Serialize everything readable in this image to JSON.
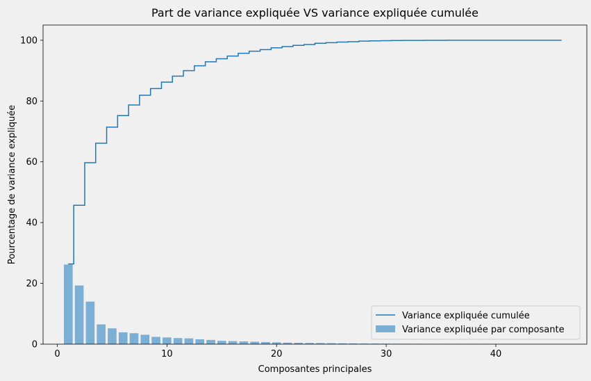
{
  "chart_data": {
    "type": "bar",
    "title": "Part de variance expliquée VS variance expliquée cumulée",
    "xlabel": "Composantes principales",
    "ylabel": "Pourcentage de variance expliquée",
    "xlim": [
      -1.3,
      48.3
    ],
    "ylim": [
      0,
      105
    ],
    "xticks": [
      0,
      10,
      20,
      30,
      40
    ],
    "yticks": [
      0,
      20,
      40,
      60,
      80,
      100
    ],
    "grid": false,
    "legend_position": "lower-right",
    "x": [
      1,
      2,
      3,
      4,
      5,
      6,
      7,
      8,
      9,
      10,
      11,
      12,
      13,
      14,
      15,
      16,
      17,
      18,
      19,
      20,
      21,
      22,
      23,
      24,
      25,
      26,
      27,
      28,
      29,
      30,
      31,
      32,
      33,
      34,
      35,
      36,
      37,
      38,
      39,
      40,
      41,
      42,
      43,
      44,
      45,
      46
    ],
    "series": [
      {
        "name": "Variance expliquée par composante",
        "type": "bar",
        "color": "#7bafd4",
        "values": [
          26.2,
          19.3,
          14.0,
          6.5,
          5.2,
          3.9,
          3.6,
          3.1,
          2.4,
          2.2,
          2.0,
          1.9,
          1.6,
          1.4,
          1.1,
          1.0,
          0.9,
          0.8,
          0.7,
          0.6,
          0.5,
          0.45,
          0.4,
          0.35,
          0.3,
          0.25,
          0.22,
          0.2,
          0.18,
          0.15,
          0.12,
          0.1,
          0.08,
          0.06,
          0.05,
          0.04,
          0.03,
          0.02,
          0.02,
          0.01,
          0.01,
          0.01,
          0.01,
          0.005,
          0.005,
          0.005
        ]
      },
      {
        "name": "Variance expliquée cumulée",
        "type": "step",
        "color": "#1f77b4",
        "values": [
          26.4,
          45.7,
          59.7,
          66.1,
          71.4,
          75.2,
          78.7,
          81.9,
          84.1,
          86.2,
          88.2,
          90.0,
          91.6,
          92.9,
          93.9,
          94.8,
          95.7,
          96.4,
          96.9,
          97.5,
          97.9,
          98.3,
          98.6,
          99.0,
          99.2,
          99.4,
          99.5,
          99.7,
          99.8,
          99.85,
          99.9,
          99.93,
          99.95,
          99.97,
          99.98,
          99.99,
          99.99,
          100,
          100,
          100,
          100,
          100,
          100,
          100,
          100,
          100
        ]
      }
    ]
  },
  "colors": {
    "background": "#f0f0f0",
    "axes_background": "#f0f0f0",
    "bar": "#7bafd4",
    "line": "#1f77b4"
  }
}
